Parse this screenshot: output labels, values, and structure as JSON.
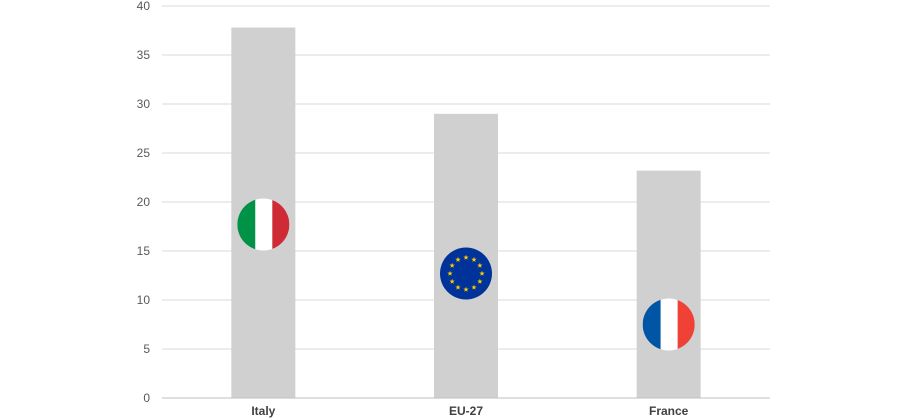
{
  "chart_data": {
    "type": "bar",
    "categories": [
      "Italy",
      "EU-27",
      "France"
    ],
    "values": [
      37.8,
      29.0,
      23.2
    ],
    "ylim": [
      0,
      40
    ],
    "yticks": [
      0,
      5,
      10,
      15,
      20,
      25,
      30,
      35,
      40
    ],
    "grid": true,
    "bar_color": "#d0d0d0",
    "category_icons": [
      "italy-flag-icon",
      "eu-flag-icon",
      "france-flag-icon"
    ],
    "icon_y_values": [
      17.7,
      12.7,
      7.5
    ]
  }
}
